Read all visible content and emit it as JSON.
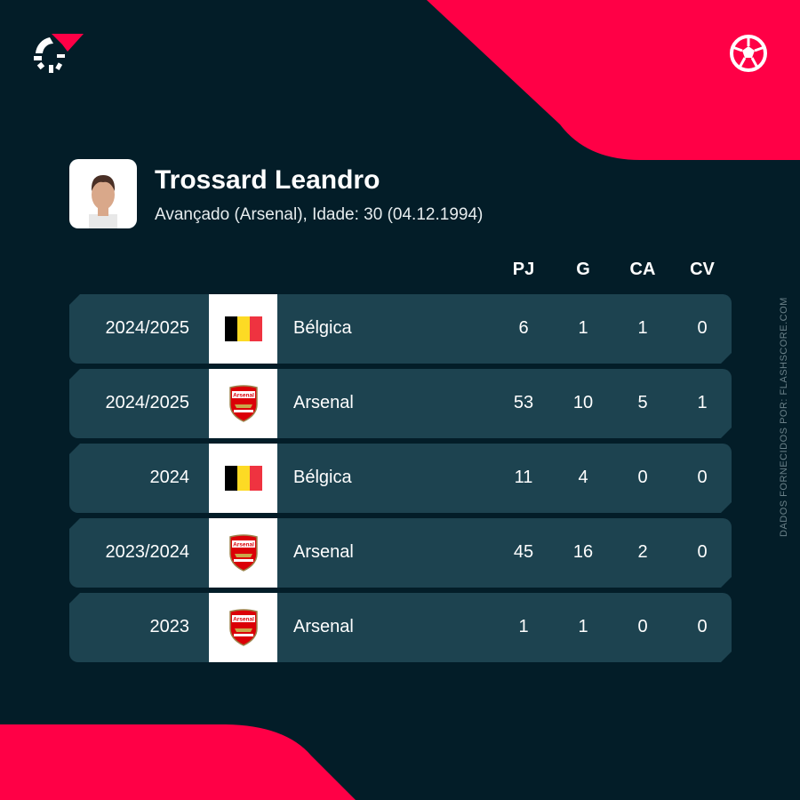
{
  "colors": {
    "background": "#031d28",
    "accent": "#ff0046",
    "row": "#1d4350"
  },
  "icons": {
    "logo": "flashscore-logo",
    "sport": "football-icon"
  },
  "player": {
    "name": "Trossard Leandro",
    "subtitle": "Avançado (Arsenal), Idade: 30 (04.12.1994)"
  },
  "columns": [
    "PJ",
    "G",
    "CA",
    "CV"
  ],
  "rows": [
    {
      "season": "2024/2025",
      "team": "Bélgica",
      "badge": "belgium-flag",
      "stats": [
        "6",
        "1",
        "1",
        "0"
      ]
    },
    {
      "season": "2024/2025",
      "team": "Arsenal",
      "badge": "arsenal-crest",
      "stats": [
        "53",
        "10",
        "5",
        "1"
      ]
    },
    {
      "season": "2024",
      "team": "Bélgica",
      "badge": "belgium-flag",
      "stats": [
        "11",
        "4",
        "0",
        "0"
      ]
    },
    {
      "season": "2023/2024",
      "team": "Arsenal",
      "badge": "arsenal-crest",
      "stats": [
        "45",
        "16",
        "2",
        "0"
      ]
    },
    {
      "season": "2023",
      "team": "Arsenal",
      "badge": "arsenal-crest",
      "stats": [
        "1",
        "1",
        "0",
        "0"
      ]
    }
  ],
  "credit": "DADOS FORNECIDOS POR: FLASHSCORE.COM"
}
